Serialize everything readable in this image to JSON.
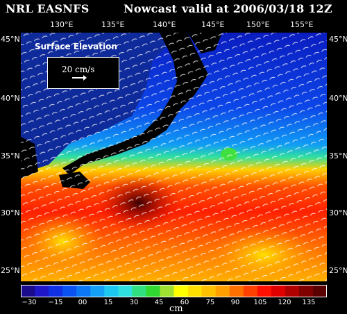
{
  "header": {
    "source": "NRL EASNFS",
    "mode": "Nowcast",
    "valid": "valid at 2006/03/18 12Z"
  },
  "axes": {
    "lon_ticks": [
      "130°E",
      "135°E",
      "140°E",
      "145°E",
      "150°E",
      "155°E"
    ],
    "lat_ticks_left": [
      "45°N",
      "40°N",
      "35°N",
      "30°N",
      "25°N"
    ],
    "lat_ticks_right": [
      "45°N",
      "40°N",
      "35°N",
      "30°N",
      "25°N"
    ]
  },
  "legend": {
    "title": "Surface Elevation",
    "vector_value": "20 cm/s"
  },
  "colorbar": {
    "ticks": [
      "−30",
      "−15",
      "00",
      "15",
      "30",
      "45",
      "60",
      "75",
      "90",
      "105",
      "120",
      "135"
    ],
    "unit": "cm",
    "colors": [
      "#1a0a8c",
      "#1e16c8",
      "#1030e6",
      "#0b52f2",
      "#0c78f5",
      "#14a0f5",
      "#1cc8f0",
      "#2fe0e0",
      "#30e080",
      "#30d830",
      "#a0e030",
      "#ffff00",
      "#ffe000",
      "#ffc000",
      "#ffa000",
      "#ff7000",
      "#ff4000",
      "#ff1000",
      "#e00000",
      "#b00000",
      "#800000",
      "#5a0000"
    ]
  }
}
